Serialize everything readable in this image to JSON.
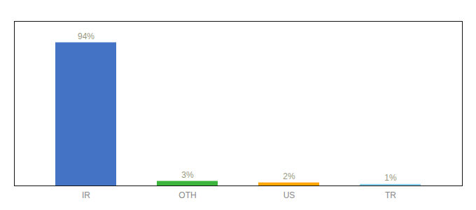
{
  "chart_data": {
    "type": "bar",
    "categories": [
      "IR",
      "OTH",
      "US",
      "TR"
    ],
    "values": [
      94,
      3,
      2,
      1
    ],
    "value_labels": [
      "94%",
      "3%",
      "2%",
      "1%"
    ],
    "colors": [
      "#4472c4",
      "#3cb53c",
      "#ffa500",
      "#87ceeb"
    ],
    "ylim": [
      0,
      108
    ],
    "data_labels": true,
    "tick_labels": "x",
    "grid": false
  }
}
